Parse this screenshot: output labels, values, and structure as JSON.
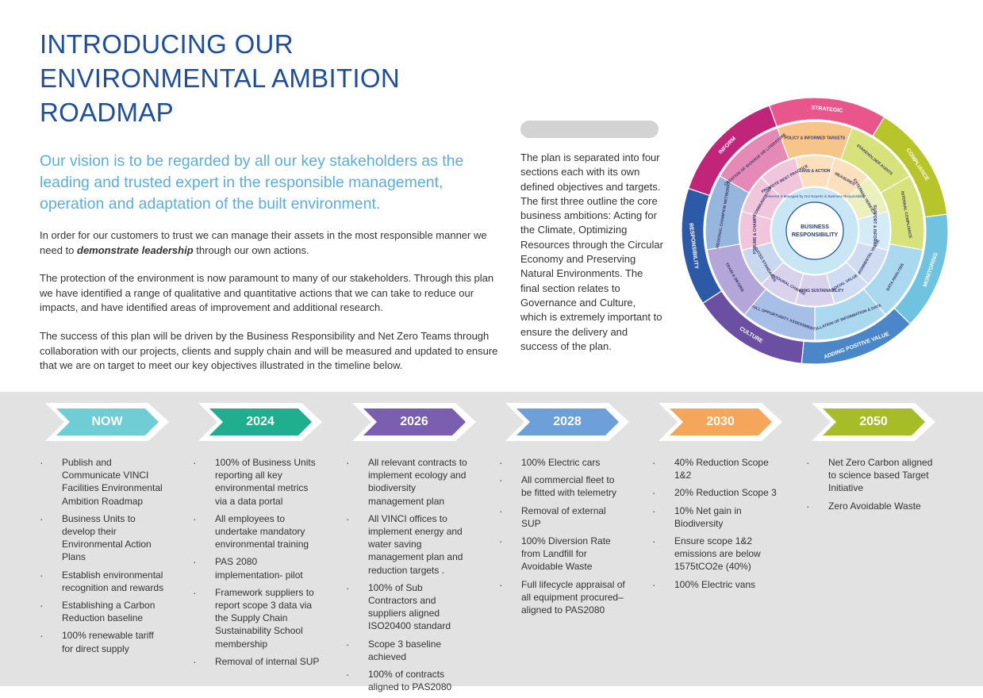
{
  "title_lines": [
    "INTRODUCING OUR",
    "ENVIRONMENTAL AMBITION",
    "ROADMAP"
  ],
  "vision": "Our vision is to be regarded by all our key stakeholders as the leading and trusted expert in the responsible management, operation and adaptation of the built environment.",
  "para1_pre": "In order for our customers to trust we can manage their assets in the most responsible manner we need to ",
  "para1_em": "demonstrate leadership",
  "para1_post": " through our own actions.",
  "para2": "The protection of the environment is now paramount to many of our stakeholders. Through this plan we have identified a range of qualitative and quantitative actions that we can take to reduce our impacts, and have identified areas of improvement and additional research.",
  "para3": "The success of this plan will  be driven by the Business Responsibility and Net Zero Teams through collaboration with our projects, clients and supply chain  and will be measured and updated to ensure that we are on target to meet our key objectives illustrated in the timeline below.",
  "side_text": "The plan is separated into four sections each with its own defined objectives and targets. The first three outline the core business ambitions: Acting for the Climate, Optimizing Resources through the Circular Economy and Preserving Natural Environments. The final section relates to Governance and Culture, which is extremely important to ensure the delivery and success of the plan.",
  "wheel": {
    "center_line1": "BUSINESS",
    "center_line2": "RESPONSIBILITY",
    "ring_text": "Delivered & Managed by Our Experts in Business Responsibility",
    "outer": [
      {
        "label": "STRATEGIC",
        "color": "#e9568b"
      },
      {
        "label": "COMPLIANCE",
        "color": "#b8c52a"
      },
      {
        "label": "MONITORING",
        "color": "#6fc3e0"
      },
      {
        "label": "ADDING POSITIVE VALUE",
        "color": "#4a86c8"
      },
      {
        "label": "CULTURE",
        "color": "#6a4fa3"
      },
      {
        "label": "RESPONSIBILITY",
        "color": "#2d5aa6"
      },
      {
        "label": "INFORM",
        "color": "#c1257a"
      }
    ],
    "inner": [
      {
        "label": "POLICY & INFORMED TARGETS",
        "color": "#f7c489"
      },
      {
        "label": "STAKEHOLDER AUDITS",
        "color": "#d8e27a"
      },
      {
        "label": "INTERNAL COMPLIANCE",
        "color": "#d8e27a"
      },
      {
        "label": "DATA ANALYSIS",
        "color": "#a9d8ef"
      },
      {
        "label": "COLLATION OF INFORMATION & DATA",
        "color": "#a9d8ef"
      },
      {
        "label": "FULL OPPORTUNITY ASSESSMENT",
        "color": "#a7bfe6"
      },
      {
        "label": "TRAIN & INFORM",
        "color": "#b4a6d8"
      },
      {
        "label": "REGIONAL CHAMPION NETWORKS",
        "color": "#97b6de"
      },
      {
        "label": "CREATION OF SIGNAGE OR LITERATURE",
        "color": "#e58ab6"
      }
    ],
    "middle": [
      {
        "label": "PLANS & ACTIONS",
        "color": "#fbe0bd"
      },
      {
        "label": "MEASURES",
        "color": "#fbe0bd"
      },
      {
        "label": "EXTERNAL VERIFICATION",
        "color": "#ecf0bd"
      },
      {
        "label": "SUPPORT & INFORMATION",
        "color": "#d4ecf7"
      },
      {
        "label": "ENVIRONMENTAL VALUE",
        "color": "#d0dcf2"
      },
      {
        "label": "SOCIAL VALUE",
        "color": "#d0dcf2"
      },
      {
        "label": "EMBEDDING SUSTAINABILITY",
        "color": "#d9d2ec"
      },
      {
        "label": "BEHAVIOURAL CHANGE",
        "color": "#d9d2ec"
      },
      {
        "label": "MANDATED STANDARDS",
        "color": "#c9d8ee"
      },
      {
        "label": "FORUMS & CHAMPIONS",
        "color": "#f1c6dc"
      },
      {
        "label": "COMMUNICATION",
        "color": "#f1c6dc"
      },
      {
        "label": "PROMOTE BEST PRACTICE",
        "color": "#f1c6dc"
      }
    ]
  },
  "timeline": [
    {
      "year": "NOW",
      "color": "#6fcdd6",
      "items": [
        "Publish and Communicate VINCI Facilities Environmental Ambition Roadmap",
        "Business Units to develop their Environmental Action Plans",
        "Establish  environmental recognition and rewards",
        "Establishing a Carbon Reduction baseline",
        "100% renewable tariff for direct supply"
      ]
    },
    {
      "year": "2024",
      "color": "#1fae8e",
      "items": [
        "100% of Business Units reporting all key environmental metrics via a data portal",
        "All employees to undertake mandatory  environmental training",
        "PAS 2080 implementation- pilot",
        "Framework suppliers to report scope 3 data via  the Supply Chain Sustainability School  membership",
        "Removal of internal SUP"
      ]
    },
    {
      "year": "2026",
      "color": "#7a5eb0",
      "items": [
        "All relevant contracts to implement ecology and biodiversity management plan",
        "All VINCI  offices to implement energy and water saving management plan and reduction targets .",
        "100% of Sub Contractors and suppliers aligned ISO20400 standard",
        "Scope 3 baseline achieved",
        "100% of contracts aligned to PAS2080"
      ]
    },
    {
      "year": "2028",
      "color": "#6d9fd9",
      "items": [
        "100% Electric cars",
        "All commercial fleet to be fitted with telemetry",
        "Removal of external SUP",
        "100% Diversion Rate from Landfill for Avoidable Waste",
        "Full lifecycle appraisal of all equipment procured– aligned to PAS2080"
      ]
    },
    {
      "year": "2030",
      "color": "#f6a65a",
      "items": [
        "40% Reduction Scope 1&2",
        "20% Reduction Scope 3",
        "10% Net gain in Biodiversity",
        "Ensure  scope 1&2 emissions are below 1575tCO2e (40%)",
        "100% Electric vans"
      ]
    },
    {
      "year": "2050",
      "color": "#a6bd28",
      "items": [
        "Net Zero Carbon aligned to science based Target Initiative",
        "Zero Avoidable Waste"
      ]
    }
  ]
}
